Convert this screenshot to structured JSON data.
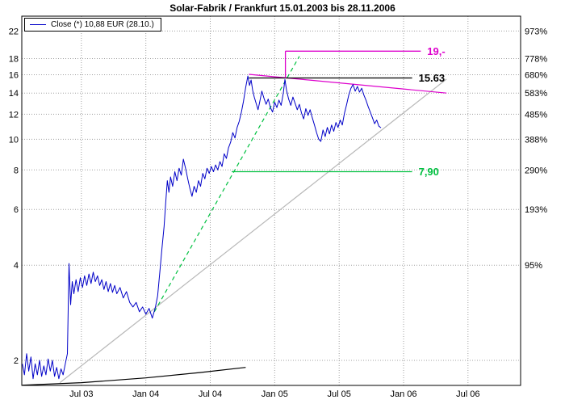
{
  "title": "Solar-Fabrik / Frankfurt 15.01.2003 bis 28.11.2006",
  "legend": {
    "label": "Close (*) 10,88 EUR (28.10.)"
  },
  "colors": {
    "price": "#0000c8",
    "grid": "#a0a0a0",
    "axis_text": "#000000",
    "border": "#000000",
    "magenta": "#dd00cc",
    "green": "#00c040",
    "gray_trend": "#b8b8b8",
    "black": "#000000"
  },
  "axes": {
    "x_ticks": [
      {
        "label": "Jul 03",
        "month": 6
      },
      {
        "label": "Jan 04",
        "month": 12
      },
      {
        "label": "Jul 04",
        "month": 18
      },
      {
        "label": "Jan 05",
        "month": 24
      },
      {
        "label": "Jul 05",
        "month": 30
      },
      {
        "label": "Jan 06",
        "month": 36
      },
      {
        "label": "Jul 06",
        "month": 42
      }
    ],
    "y_left_ticks": [
      22,
      18,
      16,
      14,
      12,
      10,
      8,
      6,
      4,
      2
    ],
    "y_right_ticks": [
      {
        "label": "973%",
        "price": 22
      },
      {
        "label": "778%",
        "price": 18
      },
      {
        "label": "680%",
        "price": 16
      },
      {
        "label": "583%",
        "price": 14
      },
      {
        "label": "485%",
        "price": 12
      },
      {
        "label": "388%",
        "price": 10
      },
      {
        "label": "290%",
        "price": 8
      },
      {
        "label": "193%",
        "price": 6
      },
      {
        "label": "95%",
        "price": 4
      }
    ]
  },
  "chart_data": {
    "type": "line",
    "title": "Solar-Fabrik / Frankfurt 15.01.2003 bis 28.11.2006",
    "x_range": "15.01.2003 bis 28.11.2006",
    "x_unit": "months since 2003-01-01",
    "yscale": "log",
    "ylim": [
      1.65,
      24.5
    ],
    "ylabel": "EUR",
    "y2label": "percent change",
    "grid": "dotted",
    "series": [
      {
        "name": "Close",
        "color": "#0000c8",
        "last_value": "10,88 EUR",
        "last_date": "28.10.",
        "points": [
          [
            0.5,
            1.95
          ],
          [
            0.7,
            1.8
          ],
          [
            0.9,
            2.1
          ],
          [
            1.1,
            1.85
          ],
          [
            1.3,
            2.05
          ],
          [
            1.5,
            1.75
          ],
          [
            1.7,
            1.95
          ],
          [
            1.9,
            1.8
          ],
          [
            2.1,
            2.0
          ],
          [
            2.3,
            1.78
          ],
          [
            2.5,
            1.92
          ],
          [
            2.7,
            1.8
          ],
          [
            2.9,
            2.02
          ],
          [
            3.1,
            1.85
          ],
          [
            3.3,
            2.0
          ],
          [
            3.5,
            1.78
          ],
          [
            3.7,
            1.9
          ],
          [
            3.9,
            1.75
          ],
          [
            4.1,
            1.88
          ],
          [
            4.3,
            1.8
          ],
          [
            4.5,
            1.95
          ],
          [
            4.7,
            2.1
          ],
          [
            4.85,
            4.05
          ],
          [
            5.0,
            3.0
          ],
          [
            5.15,
            3.55
          ],
          [
            5.3,
            3.25
          ],
          [
            5.5,
            3.6
          ],
          [
            5.7,
            3.3
          ],
          [
            5.9,
            3.65
          ],
          [
            6.1,
            3.4
          ],
          [
            6.3,
            3.7
          ],
          [
            6.5,
            3.45
          ],
          [
            6.7,
            3.75
          ],
          [
            6.9,
            3.5
          ],
          [
            7.1,
            3.8
          ],
          [
            7.3,
            3.55
          ],
          [
            7.5,
            3.7
          ],
          [
            7.7,
            3.45
          ],
          [
            7.9,
            3.6
          ],
          [
            8.1,
            3.35
          ],
          [
            8.3,
            3.55
          ],
          [
            8.5,
            3.3
          ],
          [
            8.7,
            3.5
          ],
          [
            8.9,
            3.28
          ],
          [
            9.1,
            3.45
          ],
          [
            9.3,
            3.25
          ],
          [
            9.6,
            3.4
          ],
          [
            9.9,
            3.15
          ],
          [
            10.2,
            3.3
          ],
          [
            10.5,
            3.05
          ],
          [
            10.8,
            2.95
          ],
          [
            11.1,
            3.05
          ],
          [
            11.4,
            2.85
          ],
          [
            11.7,
            2.95
          ],
          [
            12.0,
            2.8
          ],
          [
            12.3,
            2.92
          ],
          [
            12.6,
            2.72
          ],
          [
            12.9,
            2.95
          ],
          [
            13.1,
            3.2
          ],
          [
            13.3,
            3.8
          ],
          [
            13.5,
            4.5
          ],
          [
            13.7,
            5.3
          ],
          [
            13.85,
            6.3
          ],
          [
            14.0,
            7.4
          ],
          [
            14.15,
            6.8
          ],
          [
            14.3,
            7.6
          ],
          [
            14.5,
            7.1
          ],
          [
            14.7,
            7.9
          ],
          [
            14.9,
            7.4
          ],
          [
            15.1,
            8.1
          ],
          [
            15.3,
            7.7
          ],
          [
            15.5,
            8.65
          ],
          [
            15.7,
            8.1
          ],
          [
            15.9,
            7.5
          ],
          [
            16.1,
            7.0
          ],
          [
            16.3,
            6.6
          ],
          [
            16.5,
            7.1
          ],
          [
            16.7,
            6.8
          ],
          [
            16.9,
            7.4
          ],
          [
            17.1,
            7.1
          ],
          [
            17.3,
            7.8
          ],
          [
            17.5,
            7.5
          ],
          [
            17.7,
            8.1
          ],
          [
            17.9,
            7.8
          ],
          [
            18.1,
            8.2
          ],
          [
            18.3,
            7.9
          ],
          [
            18.5,
            8.3
          ],
          [
            18.7,
            8.0
          ],
          [
            18.9,
            8.5
          ],
          [
            19.1,
            8.2
          ],
          [
            19.3,
            9.0
          ],
          [
            19.5,
            8.7
          ],
          [
            19.7,
            9.4
          ],
          [
            19.9,
            9.8
          ],
          [
            20.1,
            10.5
          ],
          [
            20.3,
            10.1
          ],
          [
            20.5,
            10.9
          ],
          [
            20.7,
            11.4
          ],
          [
            20.9,
            12.2
          ],
          [
            21.1,
            13.2
          ],
          [
            21.3,
            14.6
          ],
          [
            21.5,
            15.85
          ],
          [
            21.65,
            14.8
          ],
          [
            21.8,
            15.4
          ],
          [
            21.95,
            14.3
          ],
          [
            22.1,
            13.6
          ],
          [
            22.3,
            12.9
          ],
          [
            22.45,
            12.4
          ],
          [
            22.6,
            13.1
          ],
          [
            22.8,
            14.2
          ],
          [
            23.0,
            13.5
          ],
          [
            23.2,
            12.9
          ],
          [
            23.4,
            13.4
          ],
          [
            23.6,
            12.6
          ],
          [
            23.8,
            12.2
          ],
          [
            24.0,
            13.1
          ],
          [
            24.2,
            12.6
          ],
          [
            24.4,
            13.3
          ],
          [
            24.6,
            12.8
          ],
          [
            24.8,
            14.0
          ],
          [
            24.95,
            15.45
          ],
          [
            25.1,
            14.3
          ],
          [
            25.3,
            13.4
          ],
          [
            25.5,
            12.8
          ],
          [
            25.7,
            13.6
          ],
          [
            25.9,
            13.0
          ],
          [
            26.1,
            12.4
          ],
          [
            26.3,
            12.9
          ],
          [
            26.5,
            12.1
          ],
          [
            26.7,
            11.6
          ],
          [
            26.9,
            12.5
          ],
          [
            27.1,
            11.9
          ],
          [
            27.3,
            12.4
          ],
          [
            27.5,
            11.7
          ],
          [
            27.7,
            11.1
          ],
          [
            27.9,
            10.5
          ],
          [
            28.1,
            10.0
          ],
          [
            28.3,
            9.85
          ],
          [
            28.5,
            10.7
          ],
          [
            28.7,
            10.2
          ],
          [
            28.9,
            10.9
          ],
          [
            29.1,
            10.4
          ],
          [
            29.3,
            11.1
          ],
          [
            29.5,
            10.6
          ],
          [
            29.7,
            11.3
          ],
          [
            29.9,
            10.9
          ],
          [
            30.1,
            11.5
          ],
          [
            30.3,
            11.1
          ],
          [
            30.5,
            12.1
          ],
          [
            30.7,
            12.9
          ],
          [
            30.9,
            13.8
          ],
          [
            31.1,
            14.5
          ],
          [
            31.3,
            14.9
          ],
          [
            31.5,
            14.2
          ],
          [
            31.7,
            14.7
          ],
          [
            31.9,
            14.1
          ],
          [
            32.1,
            14.5
          ],
          [
            32.3,
            13.8
          ],
          [
            32.5,
            13.3
          ],
          [
            32.7,
            12.7
          ],
          [
            32.9,
            12.2
          ],
          [
            33.1,
            11.7
          ],
          [
            33.3,
            11.2
          ],
          [
            33.5,
            11.5
          ],
          [
            33.7,
            11.0
          ],
          [
            33.9,
            10.88
          ]
        ]
      }
    ],
    "annotations": {
      "h_lines": [
        {
          "label": "19,-",
          "value": 19,
          "from_month": 25,
          "to_month": 37.6,
          "color": "#dd00cc"
        },
        {
          "label": "15.63",
          "value": 15.63,
          "from_month": 21.6,
          "to_month": 36.8,
          "color": "#000000"
        },
        {
          "label": "7,90",
          "value": 7.9,
          "from_month": 20,
          "to_month": 36.8,
          "color": "#00c040"
        }
      ],
      "v_lines": [
        {
          "month": 25,
          "from_value": 15.63,
          "to_value": 19,
          "color": "#dd00cc"
        }
      ],
      "trend_lines": [
        {
          "name": "long-term-uptrend",
          "color": "#b8b8b8",
          "dash": false,
          "points": [
            [
              4,
              1.7
            ],
            [
              40,
              15.5
            ]
          ]
        },
        {
          "name": "steep-uptrend-projection",
          "color": "#00c040",
          "dash": true,
          "points": [
            [
              12.8,
              2.85
            ],
            [
              26.3,
              18.3
            ]
          ]
        },
        {
          "name": "downtrend-from-high",
          "color": "#dd00cc",
          "dash": false,
          "points": [
            [
              21.6,
              16.05
            ],
            [
              40,
              14.0
            ]
          ]
        },
        {
          "name": "base-support",
          "color": "#000000",
          "dash": false,
          "points": [
            [
              0.5,
              1.67
            ],
            [
              6,
              1.7
            ],
            [
              12,
              1.76
            ],
            [
              17,
              1.83
            ],
            [
              21.3,
              1.9
            ]
          ]
        }
      ]
    }
  }
}
